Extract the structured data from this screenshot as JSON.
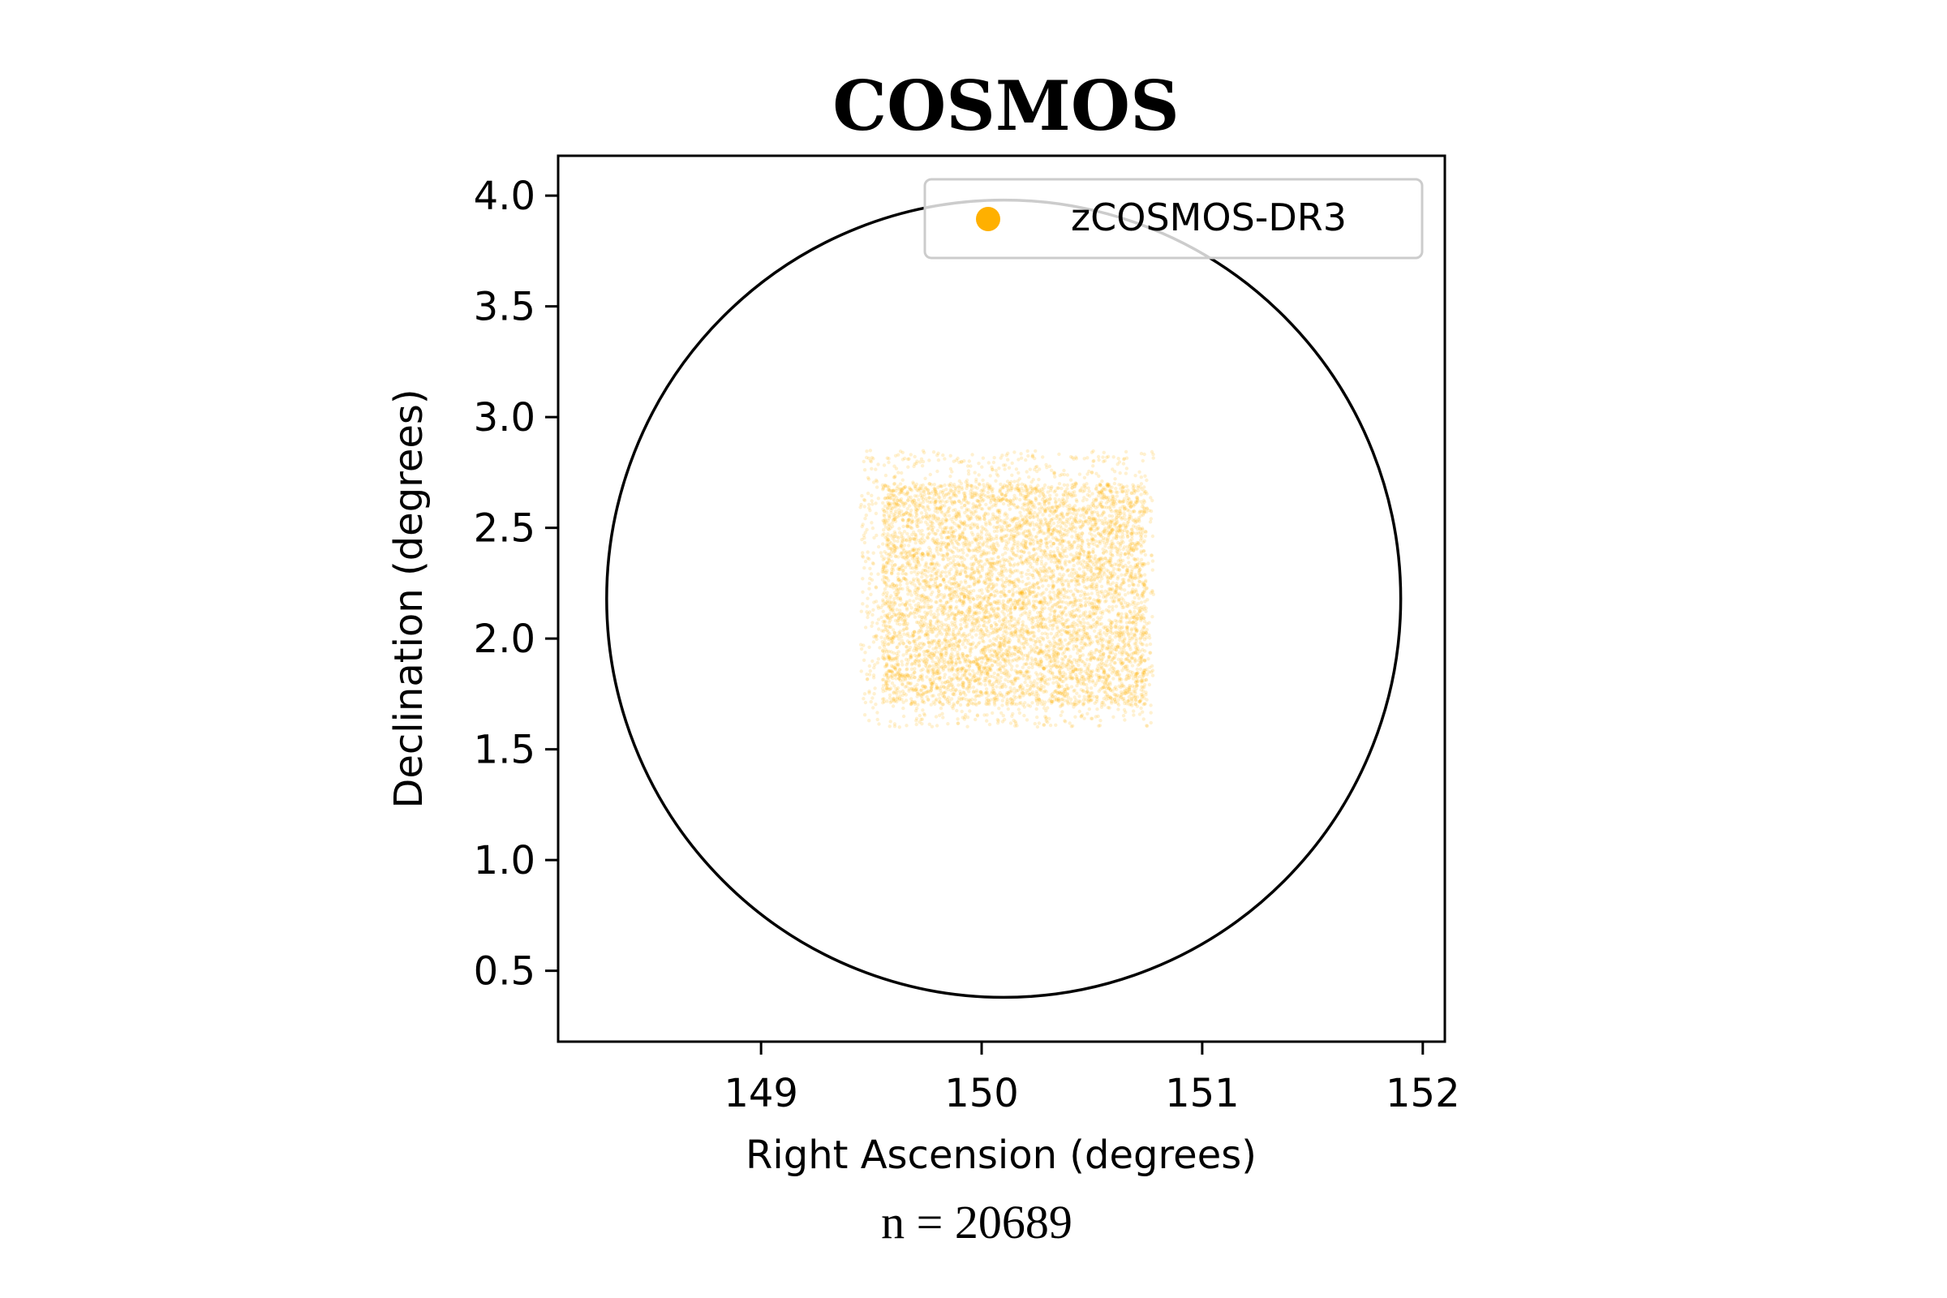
{
  "chart_data": {
    "type": "scatter",
    "title": "COSMOS",
    "xlabel": "Right Ascension (degrees)",
    "ylabel": "Declination (degrees)",
    "xlim": [
      148.08,
      152.1
    ],
    "ylim": [
      0.18,
      4.18
    ],
    "xticks": [
      149,
      150,
      151,
      152
    ],
    "yticks": [
      0.5,
      1.0,
      1.5,
      2.0,
      2.5,
      3.0,
      3.5,
      4.0
    ],
    "ytick_labels": [
      "0.5",
      "1.0",
      "1.5",
      "2.0",
      "2.5",
      "3.0",
      "3.5",
      "4.0"
    ],
    "grid": false,
    "legend": {
      "position": "top-right",
      "entries": [
        {
          "name": "zCOSMOS-DR3",
          "color": "#FFB000"
        }
      ]
    },
    "series": [
      {
        "name": "zCOSMOS-DR3",
        "color": "#FFB000",
        "kind": "dense-scatter",
        "ra_range": [
          149.45,
          150.78
        ],
        "dec_range": [
          1.6,
          2.85
        ],
        "core_ra_range": [
          149.55,
          150.75
        ],
        "core_dec_range": [
          1.7,
          2.7
        ]
      }
    ],
    "circle": {
      "center_ra": 150.1,
      "center_dec": 2.18,
      "radius_deg": 1.8,
      "color": "#000000"
    },
    "annotation": "n = 20689"
  }
}
